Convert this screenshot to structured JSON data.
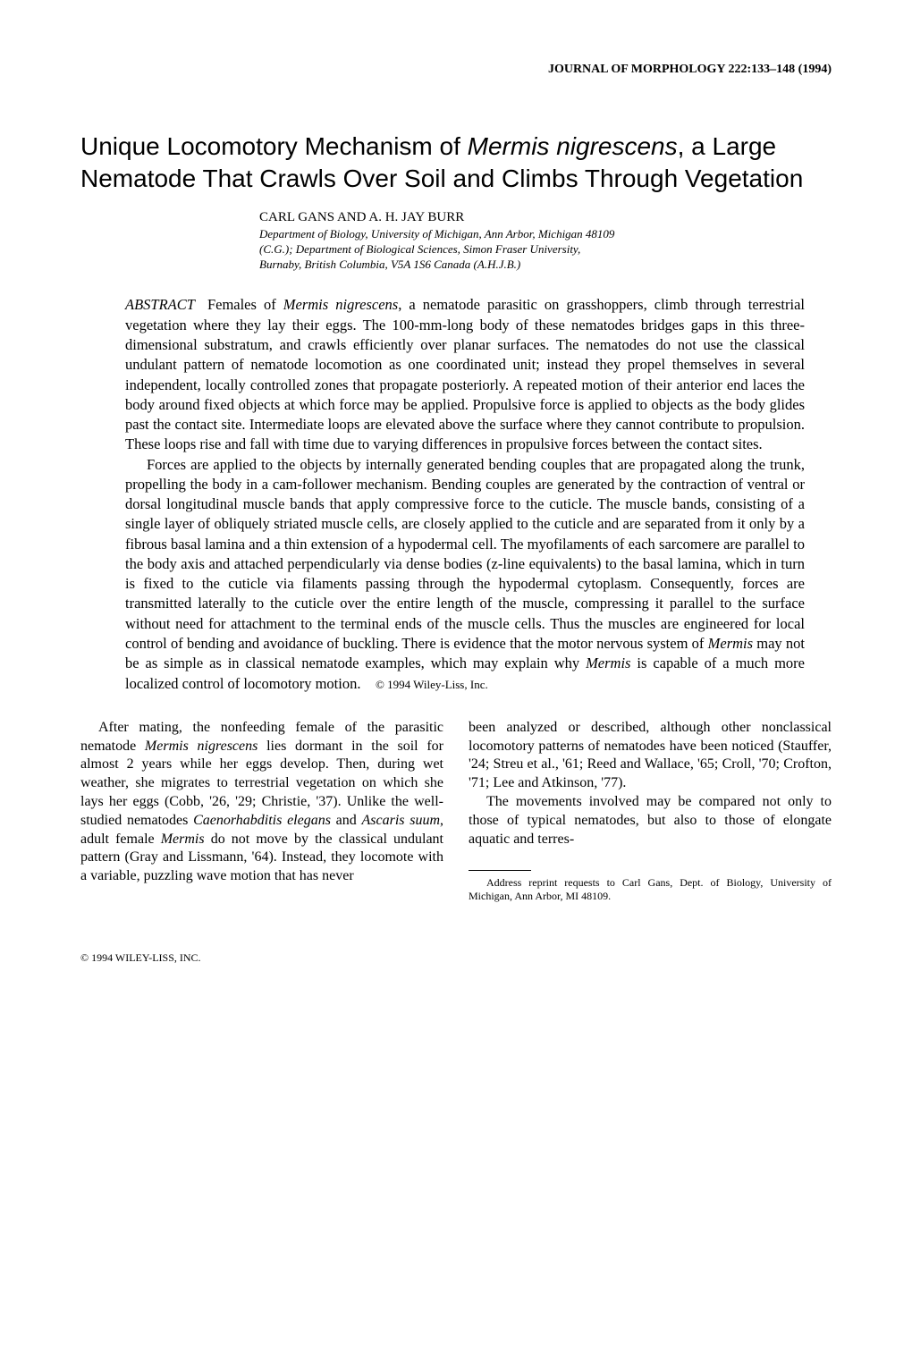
{
  "journal_header": "JOURNAL OF MORPHOLOGY 222:133–148 (1994)",
  "title_pre": "Unique Locomotory Mechanism of ",
  "title_species": "Mermis nigrescens",
  "title_post": ", a Large Nematode That Crawls Over Soil and Climbs Through Vegetation",
  "authors": "CARL GANS AND A. H. JAY BURR",
  "affiliation_l1": "Department of Biology, University of Michigan, Ann Arbor, Michigan 48109",
  "affiliation_l2": "(C.G.); Department of Biological Sciences, Simon Fraser University,",
  "affiliation_l3": "Burnaby, British Columbia, V5A 1S6 Canada (A.H.J.B.)",
  "abstract_label": "ABSTRACT",
  "abstract_p1_a": "Females of ",
  "abstract_p1_species": "Mermis nigrescens",
  "abstract_p1_b": ", a nematode parasitic on grasshoppers, climb through terrestrial vegetation where they lay their eggs. The 100-mm-long body of these nematodes bridges gaps in this three-dimensional substratum, and crawls efficiently over planar surfaces. The nematodes do not use the classical undulant pattern of nematode locomotion as one coordinated unit; instead they propel themselves in several independent, locally controlled zones that propagate posteriorly. A repeated motion of their anterior end laces the body around fixed objects at which force may be applied. Propulsive force is applied to objects as the body glides past the contact site. Intermediate loops are elevated above the surface where they cannot contribute to propulsion. These loops rise and fall with time due to varying differences in propulsive forces between the contact sites.",
  "abstract_p2_a": "Forces are applied to the objects by internally generated bending couples that are propagated along the trunk, propelling the body in a cam-follower mechanism. Bending couples are generated by the contraction of ventral or dorsal longitudinal muscle bands that apply compressive force to the cuticle. The muscle bands, consisting of a single layer of obliquely striated muscle cells, are closely applied to the cuticle and are separated from it only by a fibrous basal lamina and a thin extension of a hypodermal cell. The myofilaments of each sarcomere are parallel to the body axis and attached perpendicularly via dense bodies (z-line equivalents) to the basal lamina, which in turn is fixed to the cuticle via filaments passing through the hypodermal cytoplasm. Consequently, forces are transmitted laterally to the cuticle over the entire length of the muscle, compressing it parallel to the surface without need for attachment to the terminal ends of the muscle cells. Thus the muscles are engineered for local control of bending and avoidance of buckling. There is evidence that the motor nervous system of ",
  "abstract_p2_species1": "Mermis",
  "abstract_p2_b": " may not be as simple as in classical nematode examples, which may explain why ",
  "abstract_p2_species2": "Mermis",
  "abstract_p2_c": " is capable of a much more localized control of locomotory motion.",
  "abstract_copyright": "© 1994 Wiley-Liss, Inc.",
  "body_left_a": "After mating, the nonfeeding female of the parasitic nematode ",
  "body_left_sp1": "Mermis nigrescens",
  "body_left_b": " lies dormant in the soil for almost 2 years while her eggs develop. Then, during wet weather, she migrates to terrestrial vegetation on which she lays her eggs (Cobb, '26, '29; Christie, '37). Unlike the well-studied nematodes ",
  "body_left_sp2": "Caenorhabditis elegans",
  "body_left_c": " and ",
  "body_left_sp3": "Ascaris suum",
  "body_left_d": ", adult female ",
  "body_left_sp4": "Mermis",
  "body_left_e": " do not move by the classical undulant pattern (Gray and Lissmann, '64). Instead, they locomote with a variable, puzzling wave motion that has never",
  "body_right_p1": "been analyzed or described, although other nonclassical locomotory patterns of nematodes have been noticed (Stauffer, '24; Streu et al., '61; Reed and Wallace, '65; Croll, '70; Crofton, '71; Lee and Atkinson, '77).",
  "body_right_p2": "The movements involved may be compared not only to those of typical nematodes, but also to those of elongate aquatic and terres-",
  "footnote": "Address reprint requests to Carl Gans, Dept. of Biology, University of Michigan, Ann Arbor, MI 48109.",
  "bottom_copyright": "© 1994 WILEY-LISS, INC."
}
